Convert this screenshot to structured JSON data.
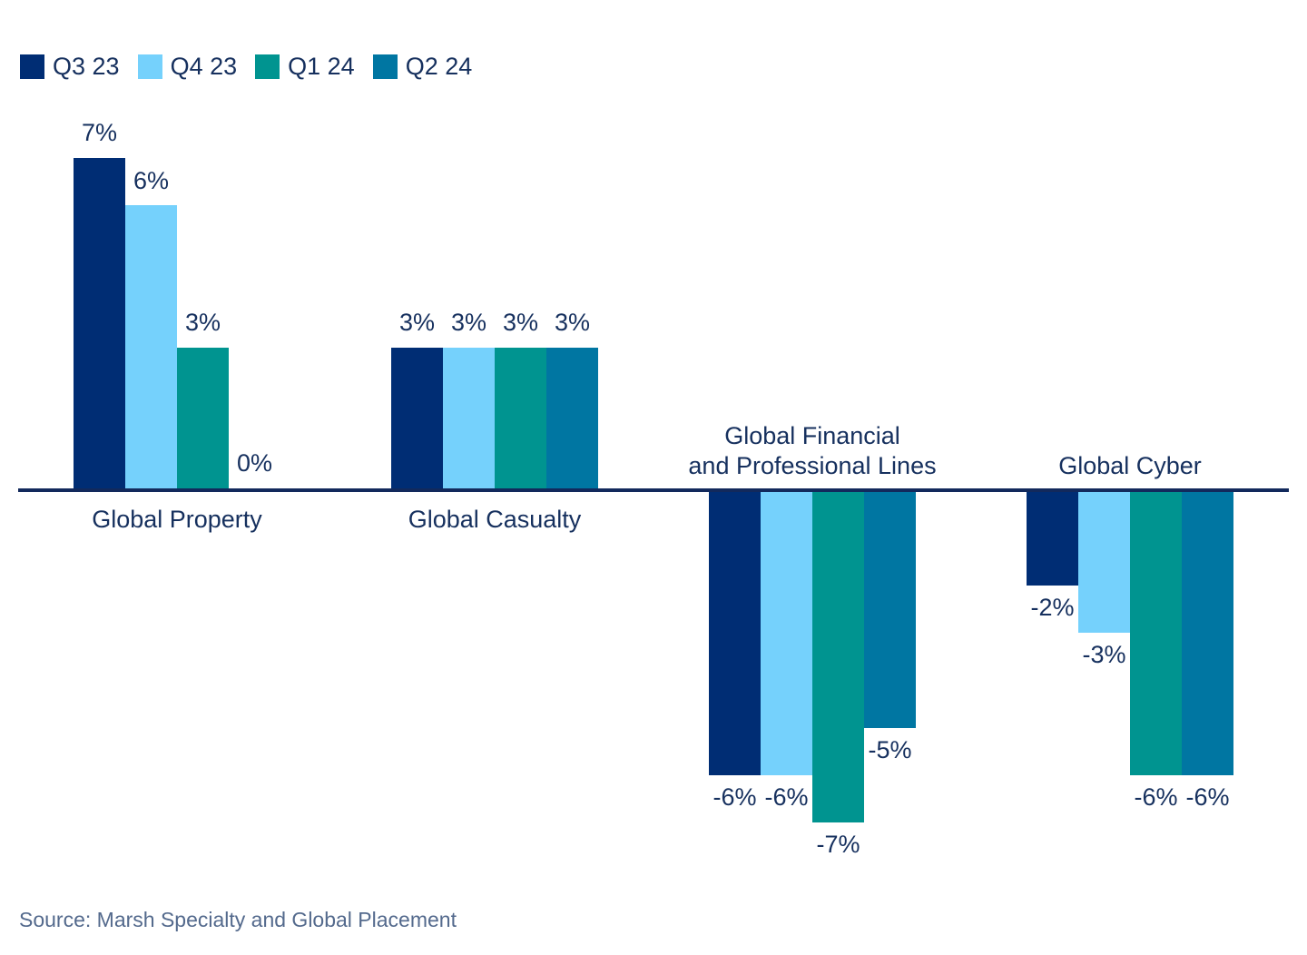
{
  "chart_data": {
    "type": "bar",
    "unit": "%",
    "categories": [
      "Global Property",
      "Global Casualty",
      "Global Financial and Professional Lines",
      "Global Cyber"
    ],
    "category_label_lines": [
      [
        "Global Property"
      ],
      [
        "Global Casualty"
      ],
      [
        "Global Financial",
        "and Professional Lines"
      ],
      [
        "Global Cyber"
      ]
    ],
    "series": [
      {
        "name": "Q3 23",
        "color": "#002d74",
        "values": [
          7,
          3,
          -6,
          -2
        ]
      },
      {
        "name": "Q4 23",
        "color": "#75d1fc",
        "values": [
          6,
          3,
          -6,
          -3
        ]
      },
      {
        "name": "Q1 24",
        "color": "#009490",
        "values": [
          3,
          3,
          -7,
          -6
        ]
      },
      {
        "name": "Q2 24",
        "color": "#0076a2",
        "values": [
          0,
          3,
          -5,
          -6
        ]
      }
    ],
    "ylim": [
      -8,
      8
    ],
    "grid": false,
    "value_labels_shown": true,
    "legend_position": "top-left"
  },
  "colors": {
    "axis": "#12295c",
    "text": "#16305e",
    "source_text": "#546a8d"
  },
  "source": "Source: Marsh Specialty and Global Placement"
}
